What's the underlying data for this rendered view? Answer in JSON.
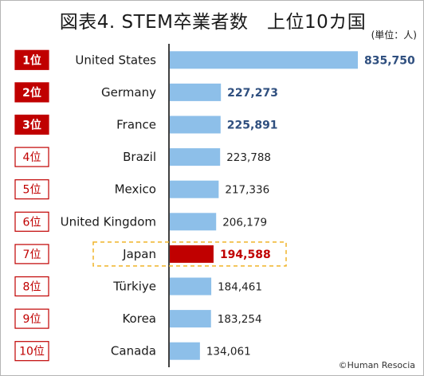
{
  "title": "図表4. STEM卒業者数　上位10カ国",
  "unit": "(単位：人)",
  "credit": "©Human Resocia",
  "colors": {
    "bar": "#8dbfe9",
    "bar_highlight": "#c00000",
    "rank_top": "#c00000",
    "value_top": "#2f4f7f",
    "value_highlight": "#c00000",
    "value_normal": "#222222",
    "axis": "#000000",
    "highlight_box": "#f0b429"
  },
  "chart_data": {
    "type": "bar",
    "orientation": "horizontal",
    "categories": [
      "United States",
      "Germany",
      "France",
      "Brazil",
      "Mexico",
      "United Kingdom",
      "Japan",
      "Türkiye",
      "Korea",
      "Canada"
    ],
    "ranks": [
      "1位",
      "2位",
      "3位",
      "4位",
      "5位",
      "6位",
      "7位",
      "8位",
      "9位",
      "10位"
    ],
    "values": [
      835750,
      227273,
      225891,
      223788,
      217336,
      206179,
      194588,
      184461,
      183254,
      134061
    ],
    "value_labels": [
      "835,750",
      "227,273",
      "225,891",
      "223,788",
      "217,336",
      "206,179",
      "194,588",
      "184,461",
      "183,254",
      "134,061"
    ],
    "highlight": "Japan",
    "top_ranked": 3,
    "legend": "none",
    "grid": false
  }
}
